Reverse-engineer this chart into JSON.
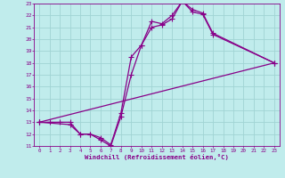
{
  "xlabel": "Windchill (Refroidissement éolien,°C)",
  "background_color": "#c0ecec",
  "grid_color": "#a0d4d4",
  "line_color": "#880088",
  "xlim": [
    -0.5,
    23.5
  ],
  "ylim": [
    11,
    23
  ],
  "xticks": [
    0,
    1,
    2,
    3,
    4,
    5,
    6,
    7,
    8,
    9,
    10,
    11,
    12,
    13,
    14,
    15,
    16,
    17,
    18,
    19,
    20,
    21,
    22,
    23
  ],
  "yticks": [
    11,
    12,
    13,
    14,
    15,
    16,
    17,
    18,
    19,
    20,
    21,
    22,
    23
  ],
  "line1_x": [
    0,
    1,
    2,
    3,
    4,
    5,
    6,
    7,
    8,
    9,
    10,
    11,
    12,
    13,
    14,
    15,
    16,
    17,
    23
  ],
  "line1_y": [
    13,
    13,
    13,
    13,
    12,
    12,
    11.5,
    11,
    13.5,
    17,
    19.5,
    21,
    21.2,
    21.7,
    23.2,
    22.5,
    22.2,
    20.5,
    18
  ],
  "line2_x": [
    0,
    3,
    4,
    5,
    6,
    7,
    8,
    9,
    10,
    11,
    12,
    13,
    14,
    15,
    16,
    17,
    23
  ],
  "line2_y": [
    13,
    12.8,
    12,
    12,
    11.7,
    11.1,
    13.8,
    18.5,
    19.5,
    21.5,
    21.3,
    22,
    23.2,
    22.3,
    22.1,
    20.4,
    18
  ],
  "line3_x": [
    0,
    23
  ],
  "line3_y": [
    13,
    18
  ],
  "marker": "+",
  "markersize": 4,
  "linewidth": 0.9
}
